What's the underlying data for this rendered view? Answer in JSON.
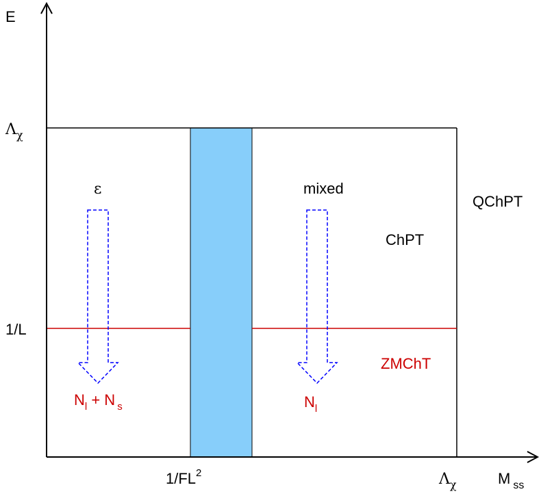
{
  "axes": {
    "y_label": "E",
    "x_label": "M",
    "x_label_sub": "ss"
  },
  "y_ticks": {
    "top_main": "Λ",
    "top_sub": "χ",
    "mid": "1/L"
  },
  "x_ticks": {
    "band": "1/FL",
    "band_sup": "2",
    "right_main": "Λ",
    "right_sub": "χ"
  },
  "regions": {
    "qchpt": "QChPT",
    "chpt": "ChPT",
    "zmcht": "ZMChT"
  },
  "arrows": {
    "left_label": "ε",
    "left_result_1": "N",
    "left_result_1_sub": "l",
    "left_result_plus": " + N",
    "left_result_2_sub": "s",
    "right_label": "mixed",
    "right_result": "N",
    "right_result_sub": "l"
  },
  "colors": {
    "band_fill": "#87cefa",
    "red_line": "#cc0000",
    "arrow": "#0000ff",
    "axis": "#000000"
  }
}
